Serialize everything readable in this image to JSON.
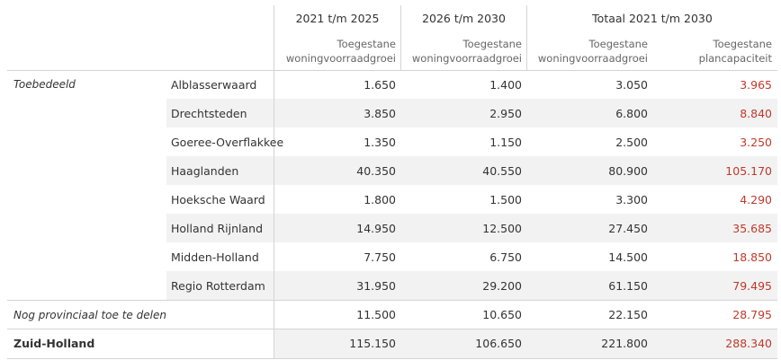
{
  "header": {
    "period1": "2021 t/m 2025",
    "period2": "2026 t/m 2030",
    "total": "Totaal 2021 t/m 2030",
    "growth_label_line1": "Toegestane",
    "growth_label_line2": "woningvoorraadgroei",
    "capacity_label_line1": "Toegestane",
    "capacity_label_line2": "plancapaciteit"
  },
  "group_label": "Toebedeeld",
  "rows": [
    {
      "region": "Alblasserwaard",
      "p1": "1.650",
      "p2": "1.400",
      "total": "3.050",
      "cap": "3.965"
    },
    {
      "region": "Drechtsteden",
      "p1": "3.850",
      "p2": "2.950",
      "total": "6.800",
      "cap": "8.840"
    },
    {
      "region": "Goeree-Overflakkee",
      "p1": "1.350",
      "p2": "1.150",
      "total": "2.500",
      "cap": "3.250"
    },
    {
      "region": "Haaglanden",
      "p1": "40.350",
      "p2": "40.550",
      "total": "80.900",
      "cap": "105.170"
    },
    {
      "region": "Hoeksche Waard",
      "p1": "1.800",
      "p2": "1.500",
      "total": "3.300",
      "cap": "4.290"
    },
    {
      "region": "Holland Rijnland",
      "p1": "14.950",
      "p2": "12.500",
      "total": "27.450",
      "cap": "35.685"
    },
    {
      "region": "Midden-Holland",
      "p1": "7.750",
      "p2": "6.750",
      "total": "14.500",
      "cap": "18.850"
    },
    {
      "region": "Regio Rotterdam",
      "p1": "31.950",
      "p2": "29.200",
      "total": "61.150",
      "cap": "79.495"
    }
  ],
  "unallocated": {
    "label": "Nog provinciaal toe te delen",
    "p1": "11.500",
    "p2": "10.650",
    "total": "22.150",
    "cap": "28.795"
  },
  "grand_total": {
    "label": "Zuid-Holland",
    "p1": "115.150",
    "p2": "106.650",
    "total": "221.800",
    "cap": "288.340"
  },
  "colors": {
    "capacity_text": "#c0392b",
    "band": "#f2f2f2",
    "grid": "#d4d4d4"
  }
}
